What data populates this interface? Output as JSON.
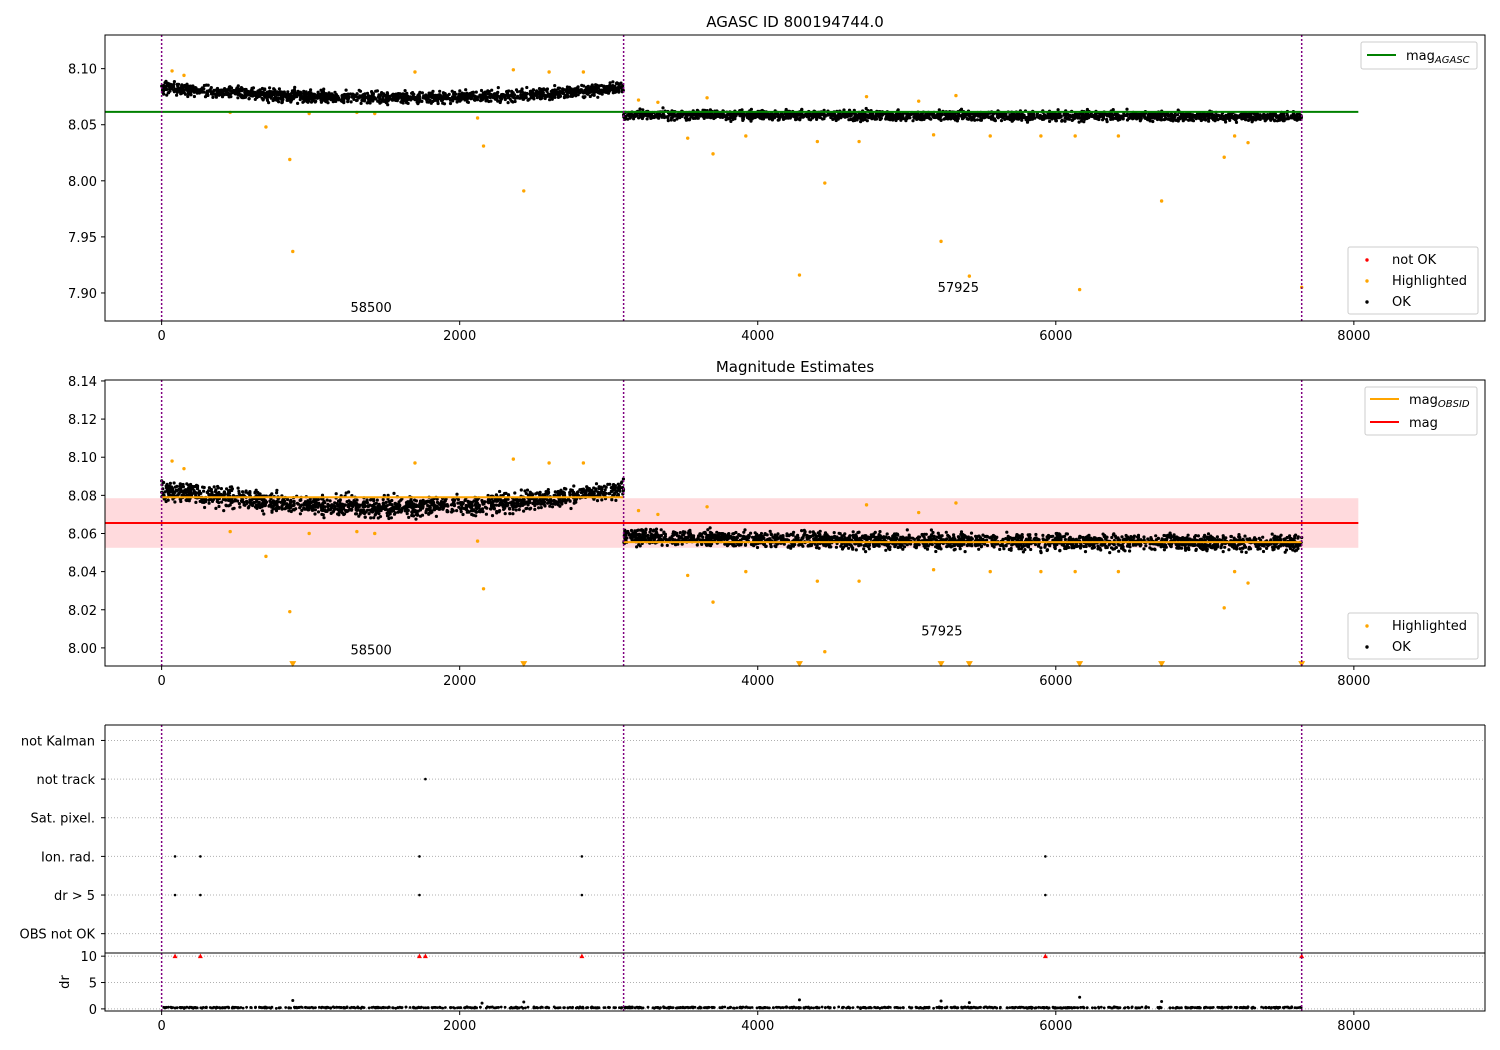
{
  "chart_data": [
    {
      "type": "scatter",
      "title": "AGASC ID 800194744.0",
      "xlim": [
        -380,
        8880
      ],
      "ylim": [
        7.875,
        8.13
      ],
      "xticks": [
        0,
        2000,
        4000,
        6000,
        8000
      ],
      "yticks": [
        7.9,
        7.95,
        8.0,
        8.05,
        8.1
      ],
      "xtick_labels": [
        "0",
        "2000",
        "4000",
        "6000",
        "8000"
      ],
      "ytick_labels": [
        "7.90",
        "7.95",
        "8.00",
        "8.05",
        "8.10"
      ],
      "obs_boundaries": [
        0,
        3100,
        7650
      ],
      "obs_labels": [
        {
          "text": "58500",
          "x": 1540,
          "y": 7.883
        },
        {
          "text": "57925",
          "x": 5480,
          "y": 7.901
        }
      ],
      "hlines": [
        {
          "name": "mag_AGASC",
          "y": 8.0615,
          "x": [
            -380,
            8030
          ],
          "color": "#008000"
        }
      ],
      "series": [
        {
          "name": "OK",
          "color": "#000000",
          "segments": [
            {
              "x": [
                0,
                3100
              ],
              "start": 8.083,
              "mid": 8.074,
              "end": 8.083,
              "spread": 0.005,
              "count": 1500
            },
            {
              "x": [
                3100,
                7650
              ],
              "start": 8.059,
              "mid": 8.058,
              "end": 8.057,
              "spread": 0.004,
              "count": 2100
            }
          ]
        },
        {
          "name": "Highlighted",
          "color": "#ffa500",
          "points": [
            [
              70,
              8.098
            ],
            [
              150,
              8.094
            ],
            [
              460,
              8.061
            ],
            [
              700,
              8.048
            ],
            [
              860,
              8.019
            ],
            [
              880,
              7.937
            ],
            [
              990,
              8.06
            ],
            [
              1310,
              8.061
            ],
            [
              1430,
              8.06
            ],
            [
              1700,
              8.097
            ],
            [
              2120,
              8.056
            ],
            [
              2160,
              8.031
            ],
            [
              2360,
              8.099
            ],
            [
              2430,
              7.991
            ],
            [
              2600,
              8.097
            ],
            [
              2830,
              8.097
            ],
            [
              3200,
              8.072
            ],
            [
              3330,
              8.07
            ],
            [
              3530,
              8.038
            ],
            [
              3660,
              8.074
            ],
            [
              3700,
              8.024
            ],
            [
              3920,
              8.04
            ],
            [
              4280,
              7.916
            ],
            [
              4400,
              8.035
            ],
            [
              4450,
              7.998
            ],
            [
              4680,
              8.035
            ],
            [
              4730,
              8.075
            ],
            [
              5080,
              8.071
            ],
            [
              5180,
              8.041
            ],
            [
              5230,
              7.946
            ],
            [
              5330,
              8.076
            ],
            [
              5420,
              7.915
            ],
            [
              5560,
              8.04
            ],
            [
              5900,
              8.04
            ],
            [
              6130,
              8.04
            ],
            [
              6160,
              7.903
            ],
            [
              6420,
              8.04
            ],
            [
              6710,
              7.982
            ],
            [
              7130,
              8.021
            ],
            [
              7200,
              8.04
            ],
            [
              7290,
              8.034
            ],
            [
              7650,
              7.905
            ]
          ]
        }
      ],
      "legends": [
        {
          "position": "upper right",
          "entries": [
            {
              "label": "mag",
              "sub": "AGASC",
              "color": "#008000",
              "kind": "line"
            }
          ]
        },
        {
          "position": "lower right",
          "entries": [
            {
              "label": "not OK",
              "color": "#ff0000",
              "kind": "dot"
            },
            {
              "label": "Highlighted",
              "color": "#ffa500",
              "kind": "dot"
            },
            {
              "label": "OK",
              "color": "#000000",
              "kind": "dot"
            }
          ]
        }
      ]
    },
    {
      "type": "scatter",
      "title": "Magnitude Estimates",
      "xlim": [
        -380,
        8880
      ],
      "ylim": [
        7.9905,
        8.1405
      ],
      "xticks": [
        0,
        2000,
        4000,
        6000,
        8000
      ],
      "yticks": [
        8.0,
        8.02,
        8.04,
        8.06,
        8.08,
        8.1,
        8.12,
        8.14
      ],
      "xtick_labels": [
        "0",
        "2000",
        "4000",
        "6000",
        "8000"
      ],
      "ytick_labels": [
        "8.00",
        "8.02",
        "8.04",
        "8.06",
        "8.08",
        "8.10",
        "8.12",
        "8.14"
      ],
      "obs_boundaries": [
        0,
        3100,
        7650
      ],
      "obs_labels": [
        {
          "text": "58500",
          "x": 1540,
          "y": 7.9965
        },
        {
          "text": "57925",
          "x": 5370,
          "y": 8.0065
        }
      ],
      "band": {
        "y": [
          8.0525,
          8.0785
        ],
        "x": [
          -380,
          8030
        ],
        "color": "#ffdadd"
      },
      "hlines": [
        {
          "name": "mag",
          "y": 8.0655,
          "x": [
            -380,
            8030
          ],
          "color": "#ff0000"
        },
        {
          "name": "mag_OBSID",
          "y": 8.079,
          "x": [
            0,
            3100
          ],
          "color": "#ffa500"
        },
        {
          "name": "mag_OBSID",
          "y": 8.0555,
          "x": [
            3100,
            7650
          ],
          "color": "#ffa500"
        }
      ],
      "series": [
        {
          "name": "OK",
          "color": "#000000",
          "segments": [
            {
              "x": [
                0,
                3100
              ],
              "start": 8.083,
              "mid": 8.074,
              "end": 8.083,
              "spread": 0.005,
              "count": 1500
            },
            {
              "x": [
                3100,
                7650
              ],
              "start": 8.058,
              "mid": 8.056,
              "end": 8.055,
              "spread": 0.004,
              "count": 2100
            }
          ]
        },
        {
          "name": "Highlighted",
          "color": "#ffa500",
          "points": [
            [
              70,
              8.098
            ],
            [
              150,
              8.094
            ],
            [
              460,
              8.061
            ],
            [
              700,
              8.048
            ],
            [
              860,
              8.019
            ],
            [
              990,
              8.06
            ],
            [
              1310,
              8.061
            ],
            [
              1430,
              8.06
            ],
            [
              1700,
              8.097
            ],
            [
              2120,
              8.056
            ],
            [
              2160,
              8.031
            ],
            [
              2360,
              8.099
            ],
            [
              2600,
              8.097
            ],
            [
              2830,
              8.097
            ],
            [
              3200,
              8.072
            ],
            [
              3330,
              8.07
            ],
            [
              3530,
              8.038
            ],
            [
              3660,
              8.074
            ],
            [
              3700,
              8.024
            ],
            [
              3920,
              8.04
            ],
            [
              4400,
              8.035
            ],
            [
              4450,
              7.998
            ],
            [
              4680,
              8.035
            ],
            [
              4730,
              8.075
            ],
            [
              5080,
              8.071
            ],
            [
              5180,
              8.041
            ],
            [
              5330,
              8.076
            ],
            [
              5560,
              8.04
            ],
            [
              5900,
              8.04
            ],
            [
              6130,
              8.04
            ],
            [
              6420,
              8.04
            ],
            [
              7130,
              8.021
            ],
            [
              7200,
              8.04
            ],
            [
              7290,
              8.034
            ]
          ]
        },
        {
          "name": "Highlighted (below axis)",
          "color": "#ffa500",
          "marker": "triangle",
          "points": [
            [
              880,
              7.9915
            ],
            [
              2430,
              7.9915
            ],
            [
              4280,
              7.9915
            ],
            [
              5230,
              7.9915
            ],
            [
              5420,
              7.9915
            ],
            [
              6160,
              7.9915
            ],
            [
              6710,
              7.9915
            ],
            [
              7650,
              7.9915
            ]
          ]
        }
      ],
      "legends": [
        {
          "position": "upper right",
          "entries": [
            {
              "label": "mag",
              "sub": "OBSID",
              "color": "#ffa500",
              "kind": "line"
            },
            {
              "label": "mag",
              "color": "#ff0000",
              "kind": "line"
            }
          ]
        },
        {
          "position": "lower right",
          "entries": [
            {
              "label": "Highlighted",
              "color": "#ffa500",
              "kind": "dot"
            },
            {
              "label": "OK",
              "color": "#000000",
              "kind": "dot"
            }
          ]
        }
      ]
    },
    {
      "type": "scatter",
      "title": "",
      "xlim": [
        -380,
        8880
      ],
      "categories": [
        "OBS not OK",
        "dr > 5",
        "Ion. rad.",
        "Sat. pixel.",
        "not track",
        "not Kalman"
      ],
      "obs_boundaries": [
        0,
        3100,
        7650
      ],
      "flag_points": [
        {
          "category": "not track",
          "x": [
            1770
          ]
        },
        {
          "category": "Ion. rad.",
          "x": [
            90,
            260,
            1730,
            2820,
            5930
          ]
        },
        {
          "category": "dr > 5",
          "x": [
            90,
            260,
            1730,
            2820,
            5930
          ]
        }
      ],
      "flag_count": 6,
      "ylim_flags": [
        -0.5,
        5.4
      ]
    },
    {
      "type": "scatter",
      "title": "",
      "ylabel": "dr",
      "xlim": [
        -380,
        8880
      ],
      "ylim": [
        -0.4,
        10.6
      ],
      "xticks": [
        0,
        2000,
        4000,
        6000,
        8000
      ],
      "yticks": [
        0,
        5,
        10
      ],
      "xtick_labels": [
        "0",
        "2000",
        "4000",
        "6000",
        "8000"
      ],
      "ytick_labels": [
        "0",
        "5",
        "10"
      ],
      "obs_boundaries": [
        0,
        3100,
        7650
      ],
      "clipped_points": [
        90,
        260,
        1730,
        1770,
        2820,
        5930,
        7650
      ],
      "outliers": [
        [
          880,
          1.6
        ],
        [
          2150,
          1.1
        ],
        [
          2430,
          1.3
        ],
        [
          4280,
          1.7
        ],
        [
          5230,
          1.5
        ],
        [
          5420,
          1.2
        ],
        [
          6160,
          2.2
        ],
        [
          6710,
          1.4
        ]
      ],
      "ok_points": {
        "x": [
          0,
          7650
        ],
        "mean": 0.25,
        "spread": 0.12,
        "count": 900
      }
    }
  ]
}
